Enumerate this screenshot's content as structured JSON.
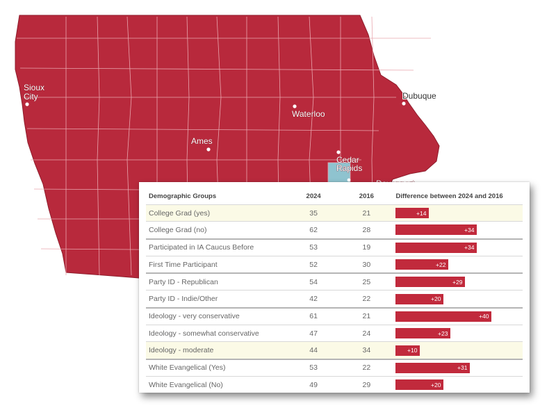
{
  "map": {
    "fill_color": "#b8293c",
    "border_color": "#e9a6ae",
    "highlight_color": "#8fc3cf",
    "cities": [
      {
        "id": "sioux-city",
        "label": "Sioux City"
      },
      {
        "id": "dubuque",
        "label": "Dubuque"
      },
      {
        "id": "waterloo",
        "label": "Waterloo"
      },
      {
        "id": "ames",
        "label": "Ames"
      },
      {
        "id": "cedar-rapids",
        "label": "Cedar Rapids"
      },
      {
        "id": "davenport",
        "label": "Davenport"
      }
    ]
  },
  "table": {
    "headers": {
      "group": "Demographic Groups",
      "y2024": "2024",
      "y2016": "2016",
      "difference": "Difference between 2024 and 2016"
    },
    "bar_color": "#c12a3c",
    "bar_max_difference": 40,
    "rows": [
      {
        "group": "College Grad (yes)",
        "y2024": "35",
        "y2016": "21",
        "diff": 14,
        "diff_label": "+14",
        "highlight": true
      },
      {
        "group": "College Grad (no)",
        "y2024": "62",
        "y2016": "28",
        "diff": 34,
        "diff_label": "+34"
      },
      {
        "group": "Participated in IA Caucus Before",
        "y2024": "53",
        "y2016": "19",
        "diff": 34,
        "diff_label": "+34",
        "group_start": true
      },
      {
        "group": "First Time Participant",
        "y2024": "52",
        "y2016": "30",
        "diff": 22,
        "diff_label": "+22"
      },
      {
        "group": "Party ID - Republican",
        "y2024": "54",
        "y2016": "25",
        "diff": 29,
        "diff_label": "+29",
        "group_start": true
      },
      {
        "group": "Party ID - Indie/Other",
        "y2024": "42",
        "y2016": "22",
        "diff": 20,
        "diff_label": "+20"
      },
      {
        "group": "Ideology - very conservative",
        "y2024": "61",
        "y2016": "21",
        "diff": 40,
        "diff_label": "+40",
        "group_start": true
      },
      {
        "group": "Ideology - somewhat conservative",
        "y2024": "47",
        "y2016": "24",
        "diff": 23,
        "diff_label": "+23"
      },
      {
        "group": "Ideology - moderate",
        "y2024": "44",
        "y2016": "34",
        "diff": 10,
        "diff_label": "+10",
        "highlight": true
      },
      {
        "group": "White Evangelical (Yes)",
        "y2024": "53",
        "y2016": "22",
        "diff": 31,
        "diff_label": "+31",
        "group_start": true
      },
      {
        "group": "White Evangelical (No)",
        "y2024": "49",
        "y2016": "29",
        "diff": 20,
        "diff_label": "+20"
      }
    ]
  }
}
